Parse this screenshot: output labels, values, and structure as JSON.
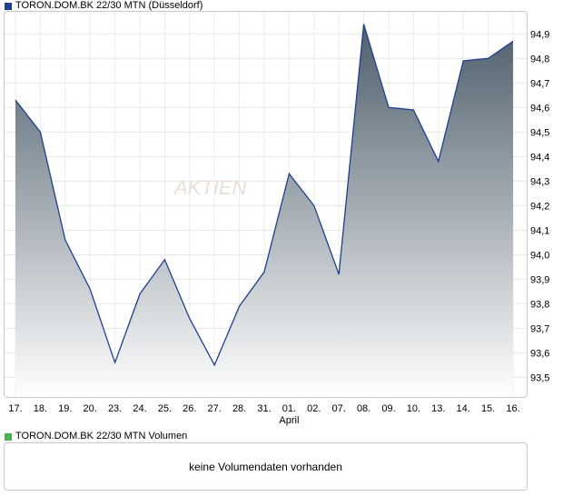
{
  "price_legend": {
    "label": "TORON.DOM.BK 22/30 MTN (Düsseldorf)",
    "color": "#1f3f8f"
  },
  "volume_legend": {
    "label": "TORON.DOM.BK 22/30 MTN Volumen",
    "color": "#4caf50"
  },
  "volume_panel": {
    "message": "keine Volumendaten vorhanden"
  },
  "watermark": {
    "text": "AKTIEN"
  },
  "chart_data": {
    "type": "area",
    "categories": [
      "17.",
      "18.",
      "19.",
      "20.",
      "23.",
      "24.",
      "25.",
      "26.",
      "27.",
      "28.",
      "31.",
      "01.",
      "02.",
      "07.",
      "08.",
      "09.",
      "10.",
      "13.",
      "14.",
      "15.",
      "16."
    ],
    "month_label": {
      "at": "01.",
      "text": "April"
    },
    "series": [
      {
        "values": [
          94.63,
          94.5,
          94.06,
          93.86,
          93.56,
          93.84,
          93.98,
          93.74,
          93.55,
          93.79,
          93.93,
          94.33,
          94.2,
          93.92,
          94.94,
          94.6,
          94.59,
          94.38,
          94.79,
          94.8,
          94.87
        ]
      }
    ],
    "y_ticks": [
      93.5,
      93.6,
      93.7,
      93.8,
      93.9,
      94.0,
      94.1,
      94.2,
      94.3,
      94.4,
      94.5,
      94.6,
      94.7,
      94.8,
      94.9
    ],
    "y_tick_labels": [
      "93,5",
      "93,6",
      "93,7",
      "93,8",
      "93,9",
      "94,0",
      "94,1",
      "94,2",
      "94,3",
      "94,4",
      "94,5",
      "94,6",
      "94,7",
      "94,8",
      "94,9"
    ],
    "ylim": [
      93.42,
      94.99
    ],
    "grid": true,
    "y_axis_side": "right",
    "line_color": "#1f3f8f",
    "fill_top_color": "#4d5e6b",
    "fill_bottom_color": "#ffffff"
  }
}
